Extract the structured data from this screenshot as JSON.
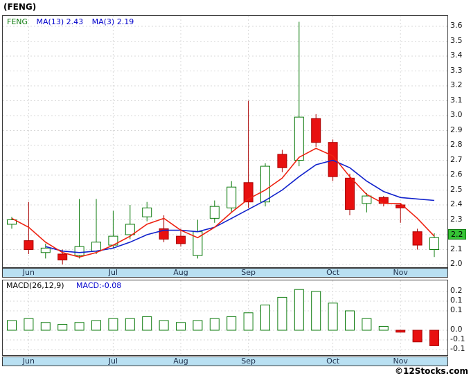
{
  "page": {
    "title": "(FENG)",
    "copyright": "©12Stocks.com"
  },
  "main_chart": {
    "legend": {
      "symbol": "FENG",
      "ma13": "MA(13)  2.43",
      "ma3": "MA(3)  2.19"
    },
    "price_badge": "2.2"
  },
  "macd_panel": {
    "legend_label": "MACD(26,12,9)",
    "legend_value": "MACD:-0.08"
  },
  "colors": {
    "up": "#0b7a0b",
    "down": "#e81010",
    "down_border": "#aa0000",
    "ma13": "#1122cc",
    "ma3": "#ee2211",
    "badge_bg": "#35c435",
    "band_bg": "#b9e0f2",
    "grid": "#d9d9d9",
    "legend_symbol": "#0b7a0b",
    "legend_ma": "#0000cc"
  },
  "chart_data": [
    {
      "type": "candlestick",
      "title": "FENG weekly price, Jun–Nov",
      "ylim": [
        2.0,
        3.6
      ],
      "y_tick_step": 0.1,
      "y_tick_labels": [
        "3.6",
        "3.5",
        "3.4",
        "3.3",
        "3.2",
        "3.1",
        "3.0",
        "2.9",
        "2.8",
        "2.7",
        "2.6",
        "2.5",
        "2.4",
        "2.3",
        "2.2",
        "2.1",
        "2.0"
      ],
      "last_price_label": "2.2",
      "x_categories_months": [
        "Jun",
        "Jul",
        "Aug",
        "Sep",
        "Oct",
        "Nov"
      ],
      "month_tick_indices": [
        1,
        6,
        10,
        14,
        19,
        23
      ],
      "candles": [
        {
          "o": 2.27,
          "h": 2.32,
          "l": 2.24,
          "c": 2.3
        },
        {
          "o": 2.16,
          "h": 2.42,
          "l": 2.07,
          "c": 2.1
        },
        {
          "o": 2.08,
          "h": 2.14,
          "l": 2.04,
          "c": 2.11
        },
        {
          "o": 2.07,
          "h": 2.1,
          "l": 2.0,
          "c": 2.03
        },
        {
          "o": 2.06,
          "h": 2.44,
          "l": 2.04,
          "c": 2.12
        },
        {
          "o": 2.09,
          "h": 2.44,
          "l": 2.07,
          "c": 2.15
        },
        {
          "o": 2.13,
          "h": 2.36,
          "l": 2.11,
          "c": 2.19
        },
        {
          "o": 2.2,
          "h": 2.4,
          "l": 2.17,
          "c": 2.27
        },
        {
          "o": 2.32,
          "h": 2.42,
          "l": 2.29,
          "c": 2.38
        },
        {
          "o": 2.24,
          "h": 2.33,
          "l": 2.15,
          "c": 2.17
        },
        {
          "o": 2.19,
          "h": 2.24,
          "l": 2.12,
          "c": 2.14
        },
        {
          "o": 2.06,
          "h": 2.3,
          "l": 2.04,
          "c": 2.22
        },
        {
          "o": 2.31,
          "h": 2.43,
          "l": 2.28,
          "c": 2.39
        },
        {
          "o": 2.38,
          "h": 2.56,
          "l": 2.35,
          "c": 2.52
        },
        {
          "o": 2.55,
          "h": 3.1,
          "l": 2.38,
          "c": 2.42
        },
        {
          "o": 2.42,
          "h": 2.68,
          "l": 2.39,
          "c": 2.66
        },
        {
          "o": 2.74,
          "h": 2.77,
          "l": 2.62,
          "c": 2.65
        },
        {
          "o": 2.7,
          "h": 3.63,
          "l": 2.66,
          "c": 2.99
        },
        {
          "o": 2.98,
          "h": 3.01,
          "l": 2.79,
          "c": 2.82
        },
        {
          "o": 2.82,
          "h": 2.84,
          "l": 2.56,
          "c": 2.59
        },
        {
          "o": 2.58,
          "h": 2.61,
          "l": 2.33,
          "c": 2.37
        },
        {
          "o": 2.41,
          "h": 2.48,
          "l": 2.35,
          "c": 2.46
        },
        {
          "o": 2.45,
          "h": 2.46,
          "l": 2.39,
          "c": 2.41
        },
        {
          "o": 2.4,
          "h": 2.41,
          "l": 2.28,
          "c": 2.38
        },
        {
          "o": 2.22,
          "h": 2.24,
          "l": 2.1,
          "c": 2.13
        },
        {
          "o": 2.1,
          "h": 2.21,
          "l": 2.05,
          "c": 2.18
        }
      ],
      "series": [
        {
          "name": "MA(13)",
          "color_key": "ma13",
          "last_value": 2.43,
          "values": [
            null,
            null,
            2.12,
            2.09,
            2.08,
            2.09,
            2.11,
            2.15,
            2.2,
            2.23,
            2.23,
            2.22,
            2.25,
            2.31,
            2.37,
            2.43,
            2.5,
            2.59,
            2.67,
            2.7,
            2.65,
            2.56,
            2.49,
            2.45,
            2.44,
            2.43
          ]
        },
        {
          "name": "MA(3)",
          "color_key": "ma3",
          "last_value": 2.19,
          "values": [
            2.31,
            2.25,
            2.15,
            2.08,
            2.05,
            2.08,
            2.13,
            2.19,
            2.27,
            2.31,
            2.23,
            2.18,
            2.25,
            2.35,
            2.44,
            2.5,
            2.58,
            2.72,
            2.78,
            2.73,
            2.59,
            2.47,
            2.41,
            2.41,
            2.31,
            2.19
          ]
        }
      ]
    },
    {
      "type": "bar",
      "title": "MACD(26,12,9) histogram",
      "ylim": [
        -0.12,
        0.24
      ],
      "last_value": -0.08,
      "values": [
        0.05,
        0.06,
        0.04,
        0.03,
        0.04,
        0.05,
        0.06,
        0.06,
        0.07,
        0.05,
        0.04,
        0.05,
        0.06,
        0.07,
        0.09,
        0.13,
        0.17,
        0.21,
        0.2,
        0.14,
        0.1,
        0.06,
        0.02,
        -0.01,
        -0.06,
        -0.08
      ],
      "ticks": [
        {
          "label": "0.2",
          "value": 0.2
        },
        {
          "label": "0.1",
          "value": 0.15
        },
        {
          "label": "0.1",
          "value": 0.1
        },
        {
          "label": "0.0",
          "value": 0.0
        },
        {
          "label": "-0.1",
          "value": -0.05
        },
        {
          "label": "-0.1",
          "value": -0.1
        }
      ]
    }
  ]
}
